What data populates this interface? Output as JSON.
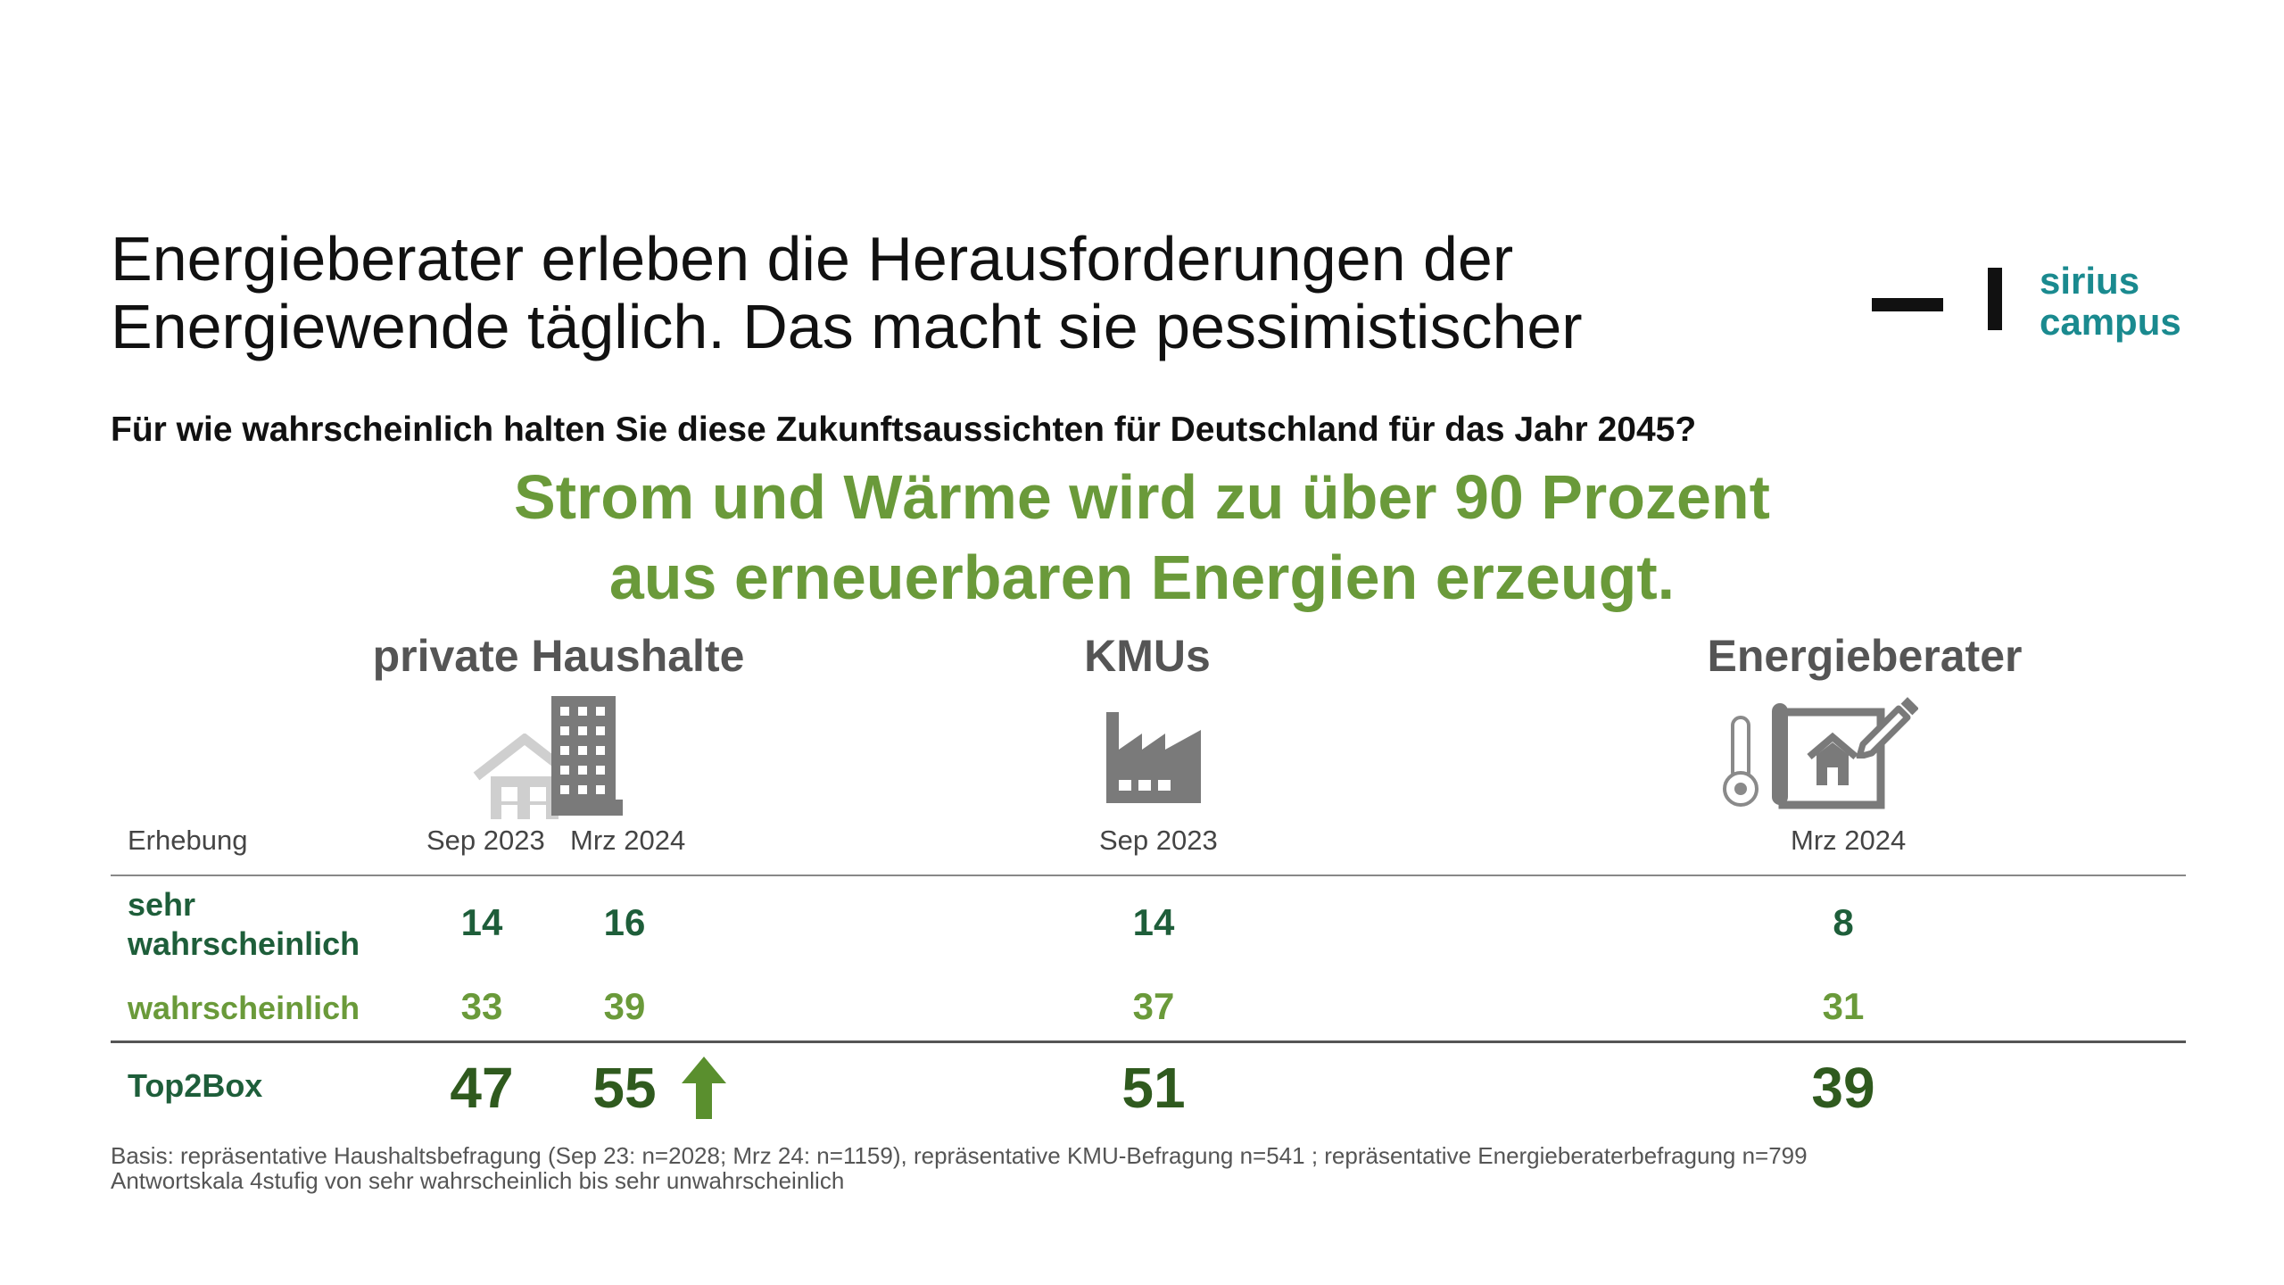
{
  "title": {
    "line1": "Energieberater erleben die Herausforderungen der",
    "line2": "Energiewende täglich. Das macht sie pessimistischer"
  },
  "logo": {
    "line1": "sirius",
    "line2": "campus"
  },
  "question": "Für wie wahrscheinlich halten Sie diese Zukunftsaussichten für Deutschland für das Jahr 2045?",
  "headline": {
    "line1": "Strom und Wärme wird zu über 90 Prozent",
    "line2": "aus erneuerbaren Energien erzeugt."
  },
  "colors": {
    "dark_green": "#1e5e3a",
    "light_green": "#6a9a3a",
    "total_green": "#2f5a1e",
    "arrow_green": "#5a8f2e",
    "group_label_gray": "#555555",
    "logo_teal": "#1a8a8f"
  },
  "icons": {
    "private_haushalte": [
      "house-icon",
      "apartment-building-icon"
    ],
    "kmus": [
      "factory-icon"
    ],
    "energieberater": [
      "thermometer-icon",
      "house-blueprint-icon",
      "pencil-icon"
    ],
    "trend": "up-arrow-icon"
  },
  "chart_data": {
    "type": "table",
    "header_label": "Erhebung",
    "groups": [
      {
        "name": "private Haushalte",
        "waves": [
          "Sep 2023",
          "Mrz 2024"
        ]
      },
      {
        "name": "KMUs",
        "waves": [
          "Sep 2023"
        ]
      },
      {
        "name": "Energieberater",
        "waves": [
          "Mrz 2024"
        ]
      }
    ],
    "columns": [
      "Sep 2023",
      "Mrz 2024",
      "Sep 2023",
      "Mrz 2024"
    ],
    "rows": [
      {
        "label": "sehr wahrscheinlich",
        "label_lines": [
          "sehr",
          "wahrscheinlich"
        ],
        "values": [
          14,
          16,
          14,
          8
        ]
      },
      {
        "label": "wahrscheinlich",
        "values": [
          33,
          39,
          37,
          31
        ]
      },
      {
        "label": "Top2Box",
        "values": [
          47,
          55,
          51,
          39
        ]
      }
    ],
    "trend_marker": {
      "row": "Top2Box",
      "column_index": 1,
      "direction": "up"
    }
  },
  "footnote": {
    "line1": "Basis: repräsentative Haushaltsbefragung (Sep 23: n=2028; Mrz 24: n=1159), repräsentative KMU-Befragung n=541 ; repräsentative Energieberaterbefragung n=799",
    "line2": "Antwortskala 4stufig von sehr wahrscheinlich bis sehr unwahrscheinlich"
  }
}
